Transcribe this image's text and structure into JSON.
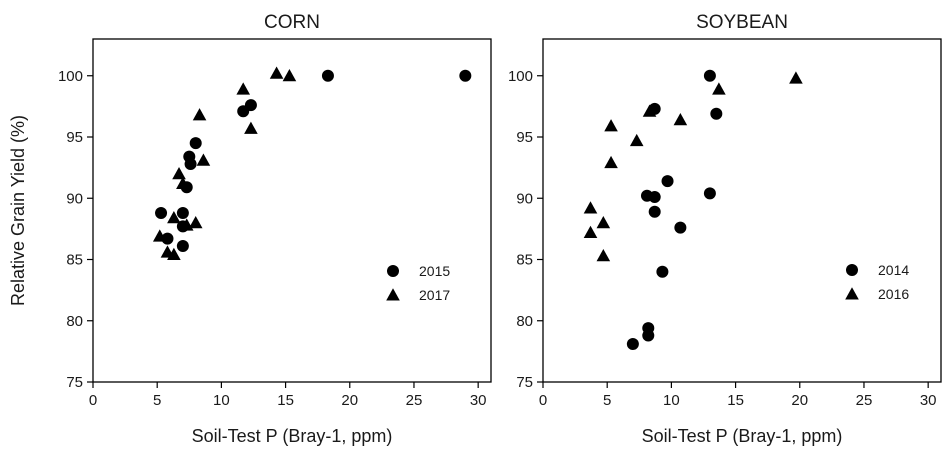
{
  "chart_data": [
    {
      "type": "scatter",
      "title": "CORN",
      "xlabel": "Soil-Test P (Bray-1, ppm)",
      "ylabel": "Relative Grain Yield (%)",
      "xlim": [
        0,
        31
      ],
      "ylim": [
        75,
        103
      ],
      "xticks": [
        0,
        5,
        10,
        15,
        20,
        25,
        30
      ],
      "yticks": [
        75,
        80,
        85,
        90,
        95,
        100
      ],
      "grid": false,
      "legend_position": "center-right",
      "series": [
        {
          "name": "2015",
          "marker": "circle",
          "points": [
            [
              5.3,
              88.8
            ],
            [
              5.8,
              86.7
            ],
            [
              7.0,
              88.8
            ],
            [
              7.0,
              87.7
            ],
            [
              7.0,
              86.1
            ],
            [
              7.3,
              90.9
            ],
            [
              7.5,
              93.4
            ],
            [
              7.6,
              92.8
            ],
            [
              8.0,
              94.5
            ],
            [
              11.7,
              97.1
            ],
            [
              12.3,
              97.6
            ],
            [
              18.3,
              100.0
            ],
            [
              29.0,
              100.0
            ]
          ]
        },
        {
          "name": "2017",
          "marker": "triangle",
          "points": [
            [
              5.2,
              86.9
            ],
            [
              5.8,
              85.6
            ],
            [
              6.3,
              88.4
            ],
            [
              6.3,
              85.4
            ],
            [
              6.7,
              92.0
            ],
            [
              7.0,
              91.2
            ],
            [
              7.3,
              87.8
            ],
            [
              8.0,
              88.0
            ],
            [
              8.3,
              96.8
            ],
            [
              8.6,
              93.1
            ],
            [
              11.7,
              98.9
            ],
            [
              12.3,
              95.7
            ],
            [
              14.3,
              100.2
            ],
            [
              15.3,
              100.0
            ]
          ]
        }
      ]
    },
    {
      "type": "scatter",
      "title": "SOYBEAN",
      "xlabel": "Soil-Test P (Bray-1, ppm)",
      "ylabel": "",
      "xlim": [
        0,
        31
      ],
      "ylim": [
        75,
        103
      ],
      "xticks": [
        0,
        5,
        10,
        15,
        20,
        25,
        30
      ],
      "yticks": [
        75,
        80,
        85,
        90,
        95,
        100
      ],
      "grid": false,
      "legend_position": "center-right",
      "series": [
        {
          "name": "2014",
          "marker": "circle",
          "points": [
            [
              7.0,
              78.1
            ],
            [
              8.2,
              79.4
            ],
            [
              8.2,
              78.8
            ],
            [
              8.1,
              90.2
            ],
            [
              8.7,
              90.1
            ],
            [
              8.7,
              88.9
            ],
            [
              8.7,
              97.3
            ],
            [
              9.3,
              84.0
            ],
            [
              9.7,
              91.4
            ],
            [
              10.7,
              87.6
            ],
            [
              13.0,
              100.0
            ],
            [
              13.0,
              90.4
            ],
            [
              13.5,
              96.9
            ]
          ]
        },
        {
          "name": "2016",
          "marker": "triangle",
          "points": [
            [
              3.7,
              89.2
            ],
            [
              3.7,
              87.2
            ],
            [
              4.7,
              88.0
            ],
            [
              4.7,
              85.3
            ],
            [
              5.3,
              92.9
            ],
            [
              5.3,
              95.9
            ],
            [
              7.3,
              94.7
            ],
            [
              8.3,
              97.1
            ],
            [
              10.7,
              96.4
            ],
            [
              13.7,
              98.9
            ],
            [
              19.7,
              99.8
            ]
          ]
        }
      ]
    }
  ]
}
